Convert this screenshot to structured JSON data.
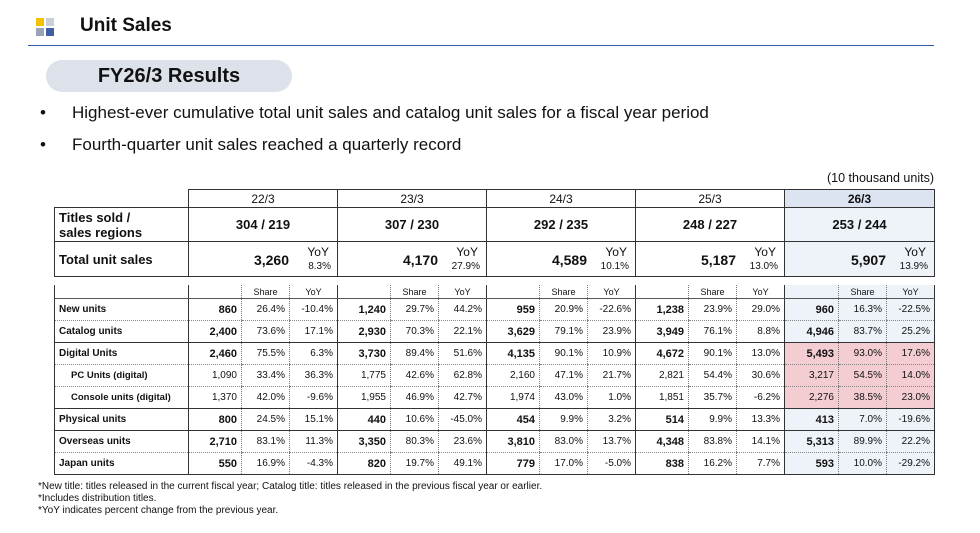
{
  "header": {
    "title": "Unit Sales",
    "logo_colors": [
      "#f2c200",
      "#9aa3b5",
      "#3e5fa8",
      "#c9ced8"
    ]
  },
  "section_label": "FY26/3 Results",
  "bullets": [
    "Highest-ever cumulative total unit sales and catalog unit sales for a fiscal year period",
    "Fourth-quarter unit sales reached a quarterly record"
  ],
  "unit_note": "(10 thousand units)",
  "summary": {
    "years": [
      "22/3",
      "23/3",
      "24/3",
      "25/3",
      "26/3"
    ],
    "row_titles_label": "Titles sold /\nsales regions",
    "row_total_label": "Total unit sales",
    "yoy_label": "YoY",
    "titles": [
      "304   /   219",
      "307   /   230",
      "292   /   235",
      "248   /   227",
      "253   /   244"
    ],
    "totals": [
      "3,260",
      "4,170",
      "4,589",
      "5,187",
      "5,907"
    ],
    "total_yoy": [
      "8.3%",
      "27.9%",
      "10.1%",
      "13.0%",
      "13.9%"
    ]
  },
  "table": {
    "sub_labels": {
      "share": "Share",
      "yoy": "YoY"
    },
    "rows": [
      {
        "label": "New units",
        "cells": [
          [
            "860",
            "26.4%",
            "-10.4%"
          ],
          [
            "1,240",
            "29.7%",
            "44.2%"
          ],
          [
            "959",
            "20.9%",
            "-22.6%"
          ],
          [
            "1,238",
            "23.9%",
            "29.0%"
          ],
          [
            "960",
            "16.3%",
            "-22.5%"
          ]
        ]
      },
      {
        "label": "Catalog units",
        "cells": [
          [
            "2,400",
            "73.6%",
            "17.1%"
          ],
          [
            "2,930",
            "70.3%",
            "22.1%"
          ],
          [
            "3,629",
            "79.1%",
            "23.9%"
          ],
          [
            "3,949",
            "76.1%",
            "8.8%"
          ],
          [
            "4,946",
            "83.7%",
            "25.2%"
          ]
        ]
      },
      {
        "label": "Digital Units",
        "cells": [
          [
            "2,460",
            "75.5%",
            "6.3%"
          ],
          [
            "3,730",
            "89.4%",
            "51.6%"
          ],
          [
            "4,135",
            "90.1%",
            "10.9%"
          ],
          [
            "4,672",
            "90.1%",
            "13.0%"
          ],
          [
            "5,493",
            "93.0%",
            "17.6%"
          ]
        ]
      },
      {
        "label": "PC Units (digital)",
        "cells": [
          [
            "1,090",
            "33.4%",
            "36.3%"
          ],
          [
            "1,775",
            "42.6%",
            "62.8%"
          ],
          [
            "2,160",
            "47.1%",
            "21.7%"
          ],
          [
            "2,821",
            "54.4%",
            "30.6%"
          ],
          [
            "3,217",
            "54.5%",
            "14.0%"
          ]
        ]
      },
      {
        "label": "Console units (digital)",
        "cells": [
          [
            "1,370",
            "42.0%",
            "-9.6%"
          ],
          [
            "1,955",
            "46.9%",
            "42.7%"
          ],
          [
            "1,974",
            "43.0%",
            "1.0%"
          ],
          [
            "1,851",
            "35.7%",
            "-6.2%"
          ],
          [
            "2,276",
            "38.5%",
            "23.0%"
          ]
        ]
      },
      {
        "label": "Physical units",
        "cells": [
          [
            "800",
            "24.5%",
            "15.1%"
          ],
          [
            "440",
            "10.6%",
            "-45.0%"
          ],
          [
            "454",
            "9.9%",
            "3.2%"
          ],
          [
            "514",
            "9.9%",
            "13.3%"
          ],
          [
            "413",
            "7.0%",
            "-19.6%"
          ]
        ]
      },
      {
        "label": "Overseas units",
        "cells": [
          [
            "2,710",
            "83.1%",
            "11.3%"
          ],
          [
            "3,350",
            "80.3%",
            "23.6%"
          ],
          [
            "3,810",
            "83.0%",
            "13.7%"
          ],
          [
            "4,348",
            "83.8%",
            "14.1%"
          ],
          [
            "5,313",
            "89.9%",
            "22.2%"
          ]
        ]
      },
      {
        "label": "Japan units",
        "cells": [
          [
            "550",
            "16.9%",
            "-4.3%"
          ],
          [
            "820",
            "19.7%",
            "49.1%"
          ],
          [
            "779",
            "17.0%",
            "-5.0%"
          ],
          [
            "838",
            "16.2%",
            "7.7%"
          ],
          [
            "593",
            "10.0%",
            "-29.2%"
          ]
        ]
      }
    ]
  },
  "footnotes": [
    "*New title: titles released in the current fiscal year; Catalog title: titles released in the previous fiscal year or earlier.",
    "*Includes distribution titles.",
    "*YoY indicates percent change from the previous year."
  ],
  "colors": {
    "accent_blue": "#2e5aa8",
    "highlight_col": "#eef2f9",
    "highlight_pink": "#f4cdd3"
  }
}
